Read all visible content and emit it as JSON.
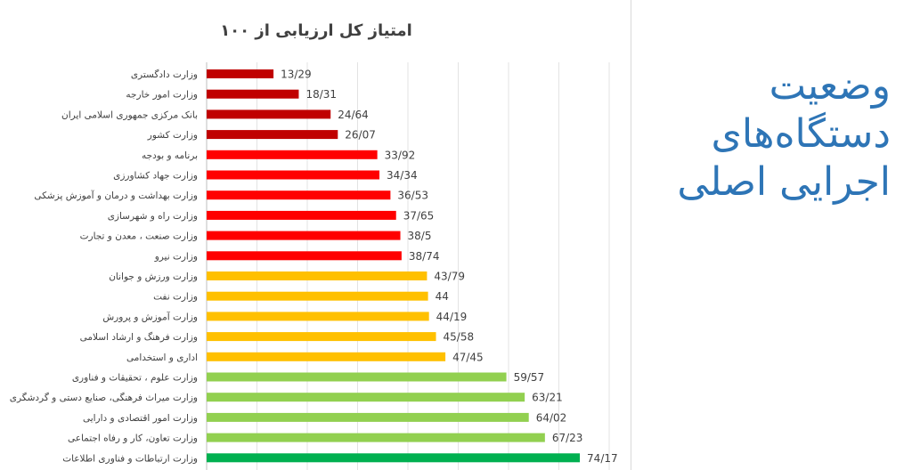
{
  "side_heading": {
    "line1": "وضعیت",
    "line2": "دستگاه‌های",
    "line3": "اجرایی اصلی"
  },
  "chart_data": {
    "type": "bar",
    "orientation": "horizontal",
    "title": "امتیاز کل ارزیابی از ۱۰۰",
    "xlim": [
      0,
      100
    ],
    "grid": "vertical",
    "categories": [
      "وزارت دادگستری",
      "وزارت امور خارجه",
      "بانک مرکزی جمهوری اسلامی ایران",
      "وزارت کشور",
      "برنامه و بودجه",
      "وزارت جهاد کشاورزی",
      "وزارت بهداشت و درمان و آموزش پزشکی",
      "وزارت راه و شهرسازی",
      "وزارت صنعت ، معدن و تجارت",
      "وزارت نیرو",
      "وزارت ورزش و جوانان",
      "وزارت نفت",
      "وزارت آموزش و پرورش",
      "وزارت فرهنگ و ارشاد اسلامی",
      "اداری و استخدامی",
      "وزارت علوم ، تحقیقات و فناوری",
      "وزارت میراث فرهنگی، صنایع دستی و گردشگری",
      "وزارت امور اقتصادی و دارایی",
      "وزارت تعاون، کار و رفاه اجتماعی",
      "وزارت ارتباطات و فناوری اطلاعات"
    ],
    "values": [
      13.29,
      18.31,
      24.64,
      26.07,
      33.92,
      34.34,
      36.53,
      37.65,
      38.5,
      38.74,
      43.79,
      44,
      44.19,
      45.58,
      47.45,
      59.57,
      63.21,
      64.02,
      67.23,
      74.17
    ],
    "value_labels": [
      "13/29",
      "18/31",
      "24/64",
      "26/07",
      "33/92",
      "34/34",
      "36/53",
      "37/65",
      "38/5",
      "38/74",
      "43/79",
      "44",
      "44/19",
      "45/58",
      "47/45",
      "59/57",
      "63/21",
      "64/02",
      "67/23",
      "74/17"
    ],
    "colors": [
      "#c00000",
      "#c00000",
      "#c00000",
      "#c00000",
      "#ff0000",
      "#ff0000",
      "#ff0000",
      "#ff0000",
      "#ff0000",
      "#ff0000",
      "#ffc000",
      "#ffc000",
      "#ffc000",
      "#ffc000",
      "#ffc000",
      "#92d050",
      "#92d050",
      "#92d050",
      "#92d050",
      "#00b050"
    ]
  }
}
